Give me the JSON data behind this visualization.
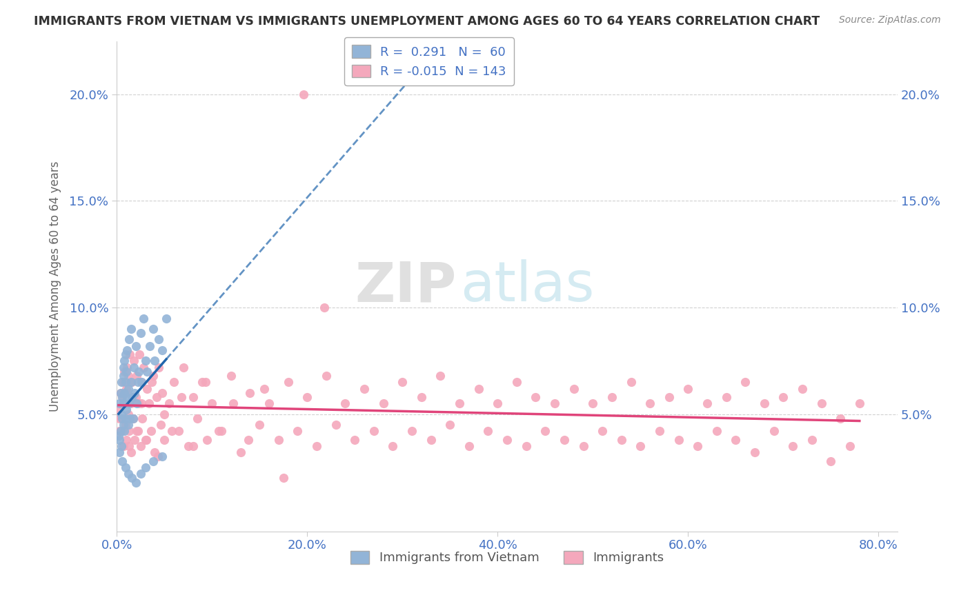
{
  "title": "IMMIGRANTS FROM VIETNAM VS IMMIGRANTS UNEMPLOYMENT AMONG AGES 60 TO 64 YEARS CORRELATION CHART",
  "source_text": "Source: ZipAtlas.com",
  "ylabel": "Unemployment Among Ages 60 to 64 years",
  "legend_labels": [
    "Immigrants from Vietnam",
    "Immigrants"
  ],
  "blue_R": 0.291,
  "blue_N": 60,
  "pink_R": -0.015,
  "pink_N": 143,
  "blue_color": "#92b4d7",
  "pink_color": "#f4a8bc",
  "blue_line_color": "#2166ac",
  "pink_line_color": "#e0447a",
  "watermark_zip": "ZIP",
  "watermark_atlas": "atlas",
  "xlim": [
    0.0,
    0.82
  ],
  "ylim": [
    -0.005,
    0.225
  ],
  "xticks": [
    0.0,
    0.2,
    0.4,
    0.6,
    0.8
  ],
  "yticks": [
    0.05,
    0.1,
    0.15,
    0.2
  ],
  "grid_color": "#cccccc",
  "background_color": "#ffffff",
  "blue_scatter_x": [
    0.002,
    0.003,
    0.003,
    0.004,
    0.004,
    0.005,
    0.005,
    0.005,
    0.006,
    0.006,
    0.007,
    0.007,
    0.007,
    0.007,
    0.008,
    0.008,
    0.008,
    0.009,
    0.009,
    0.009,
    0.01,
    0.01,
    0.011,
    0.011,
    0.012,
    0.012,
    0.013,
    0.013,
    0.014,
    0.015,
    0.015,
    0.016,
    0.017,
    0.018,
    0.019,
    0.02,
    0.021,
    0.022,
    0.023,
    0.025,
    0.026,
    0.028,
    0.03,
    0.032,
    0.035,
    0.038,
    0.04,
    0.044,
    0.048,
    0.052,
    0.003,
    0.006,
    0.009,
    0.012,
    0.016,
    0.02,
    0.025,
    0.03,
    0.038,
    0.048
  ],
  "blue_scatter_y": [
    0.04,
    0.038,
    0.055,
    0.042,
    0.06,
    0.035,
    0.05,
    0.065,
    0.048,
    0.058,
    0.045,
    0.055,
    0.068,
    0.072,
    0.042,
    0.06,
    0.075,
    0.048,
    0.065,
    0.078,
    0.052,
    0.07,
    0.058,
    0.08,
    0.062,
    0.045,
    0.055,
    0.085,
    0.048,
    0.065,
    0.09,
    0.058,
    0.048,
    0.072,
    0.06,
    0.082,
    0.055,
    0.065,
    0.07,
    0.088,
    0.065,
    0.095,
    0.075,
    0.07,
    0.082,
    0.09,
    0.075,
    0.085,
    0.08,
    0.095,
    0.032,
    0.028,
    0.025,
    0.022,
    0.02,
    0.018,
    0.022,
    0.025,
    0.028,
    0.03
  ],
  "pink_scatter_x": [
    0.002,
    0.003,
    0.004,
    0.005,
    0.006,
    0.007,
    0.007,
    0.008,
    0.008,
    0.009,
    0.01,
    0.01,
    0.011,
    0.012,
    0.012,
    0.013,
    0.014,
    0.015,
    0.015,
    0.016,
    0.017,
    0.018,
    0.019,
    0.02,
    0.021,
    0.022,
    0.023,
    0.024,
    0.025,
    0.026,
    0.027,
    0.028,
    0.03,
    0.032,
    0.034,
    0.036,
    0.038,
    0.04,
    0.042,
    0.044,
    0.046,
    0.048,
    0.05,
    0.055,
    0.06,
    0.065,
    0.07,
    0.075,
    0.08,
    0.085,
    0.09,
    0.095,
    0.1,
    0.11,
    0.12,
    0.13,
    0.14,
    0.15,
    0.16,
    0.17,
    0.18,
    0.19,
    0.2,
    0.21,
    0.22,
    0.23,
    0.24,
    0.25,
    0.26,
    0.27,
    0.28,
    0.29,
    0.3,
    0.31,
    0.32,
    0.33,
    0.34,
    0.35,
    0.36,
    0.37,
    0.38,
    0.39,
    0.4,
    0.41,
    0.42,
    0.43,
    0.44,
    0.45,
    0.46,
    0.47,
    0.48,
    0.49,
    0.5,
    0.51,
    0.52,
    0.53,
    0.54,
    0.55,
    0.56,
    0.57,
    0.58,
    0.59,
    0.6,
    0.61,
    0.62,
    0.63,
    0.64,
    0.65,
    0.66,
    0.67,
    0.68,
    0.69,
    0.7,
    0.71,
    0.72,
    0.73,
    0.74,
    0.75,
    0.76,
    0.77,
    0.78,
    0.003,
    0.006,
    0.009,
    0.013,
    0.017,
    0.021,
    0.026,
    0.031,
    0.037,
    0.043,
    0.05,
    0.058,
    0.068,
    0.08,
    0.093,
    0.107,
    0.122,
    0.138,
    0.155,
    0.175,
    0.196,
    0.218
  ],
  "pink_scatter_y": [
    0.052,
    0.042,
    0.06,
    0.048,
    0.058,
    0.065,
    0.035,
    0.055,
    0.07,
    0.045,
    0.062,
    0.038,
    0.072,
    0.05,
    0.068,
    0.042,
    0.078,
    0.055,
    0.032,
    0.065,
    0.048,
    0.075,
    0.038,
    0.058,
    0.068,
    0.042,
    0.055,
    0.078,
    0.035,
    0.065,
    0.048,
    0.072,
    0.038,
    0.062,
    0.055,
    0.042,
    0.068,
    0.032,
    0.058,
    0.072,
    0.045,
    0.06,
    0.038,
    0.055,
    0.065,
    0.042,
    0.072,
    0.035,
    0.058,
    0.048,
    0.065,
    0.038,
    0.055,
    0.042,
    0.068,
    0.032,
    0.06,
    0.045,
    0.055,
    0.038,
    0.065,
    0.042,
    0.058,
    0.035,
    0.068,
    0.045,
    0.055,
    0.038,
    0.062,
    0.042,
    0.055,
    0.035,
    0.065,
    0.042,
    0.058,
    0.038,
    0.068,
    0.045,
    0.055,
    0.035,
    0.062,
    0.042,
    0.055,
    0.038,
    0.065,
    0.035,
    0.058,
    0.042,
    0.055,
    0.038,
    0.062,
    0.035,
    0.055,
    0.042,
    0.058,
    0.038,
    0.065,
    0.035,
    0.055,
    0.042,
    0.058,
    0.038,
    0.062,
    0.035,
    0.055,
    0.042,
    0.058,
    0.038,
    0.065,
    0.032,
    0.055,
    0.042,
    0.058,
    0.035,
    0.062,
    0.038,
    0.055,
    0.028,
    0.048,
    0.035,
    0.055,
    0.048,
    0.042,
    0.06,
    0.035,
    0.058,
    0.042,
    0.055,
    0.038,
    0.065,
    0.03,
    0.05,
    0.042,
    0.058,
    0.035,
    0.065,
    0.042,
    0.055,
    0.038,
    0.062,
    0.02,
    0.2,
    0.1
  ]
}
